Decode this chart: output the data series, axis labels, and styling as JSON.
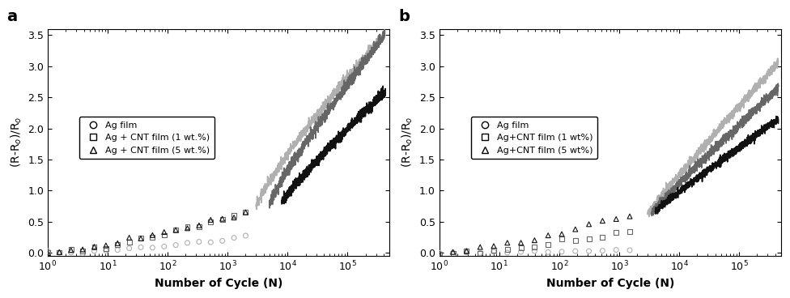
{
  "panel_a": {
    "title": "a",
    "legend": [
      "Ag film",
      "Ag + CNT film (1 wt.%)",
      "Ag + CNT film (5 wt.%)"
    ],
    "markers": [
      "o",
      "s",
      "^"
    ],
    "xlabel": "Number of Cycle (N)",
    "ylabel": "(R-R$_o$)/R$_o$",
    "ylim": [
      -0.05,
      3.6
    ],
    "xlim_log": [
      1,
      500000
    ]
  },
  "panel_b": {
    "title": "b",
    "legend": [
      "Ag film",
      "Ag+CNT film (1 wt%)",
      "Ag+CNT film (5 wt%)"
    ],
    "markers": [
      "o",
      "s",
      "^"
    ],
    "xlabel": "Number of Cycle (N)",
    "ylabel": "(R-R$_o$)/R$_o$",
    "ylim": [
      -0.05,
      3.6
    ],
    "xlim_log": [
      1,
      500000
    ]
  },
  "color_light": "#b0b0b0",
  "color_mid": "#666666",
  "color_dark": "#111111",
  "figsize": [
    9.76,
    3.68
  ],
  "dpi": 100
}
